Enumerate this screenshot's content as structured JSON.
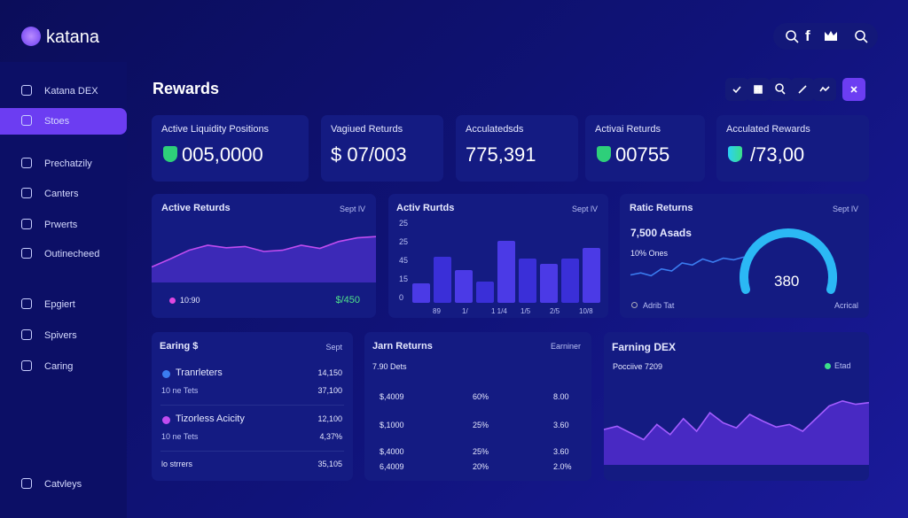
{
  "brand": "katana",
  "social": "f",
  "sidebar": {
    "items": [
      "Katana DEX",
      "Stoes",
      "Prechatzily",
      "Canters",
      "Prwerts",
      "Outinecheed",
      "Epgiert",
      "Spivers",
      "Caring",
      "Catvleys"
    ],
    "active": 1
  },
  "header": {
    "title": "Rewards"
  },
  "stats": [
    {
      "label": "Active Liquidity Positions",
      "value": "005,0000"
    },
    {
      "label": "Vagiued Returds",
      "value": "$ 07/003"
    },
    {
      "label": "Acculatedsds",
      "value": "775,391"
    },
    {
      "label": "Activai Returds",
      "value": "00755"
    },
    {
      "label": "Acculated Rewards",
      "value": "/73,00"
    }
  ],
  "active_returns": {
    "title": "Active Returds",
    "filter": "Sept lV",
    "legend": "10:90",
    "amount": "$/450",
    "ylim": [
      0,
      100
    ],
    "values": [
      25,
      38,
      52,
      60,
      56,
      58,
      50,
      52,
      60,
      55,
      66,
      72,
      74
    ]
  },
  "bar_panel": {
    "title": "Activ Rurtds",
    "filter": "Sept lV",
    "y_labels": [
      "25",
      "25",
      "45",
      "15",
      "0"
    ],
    "x_labels": [
      "89",
      "1/",
      "1 1/4",
      "1/5",
      "2/5",
      "10/8"
    ],
    "ylim": [
      0,
      100
    ],
    "values": [
      22,
      52,
      37,
      24,
      70,
      50,
      44,
      50,
      62
    ]
  },
  "ratio_panel": {
    "title": "Ratic Returns",
    "filter": "Sept lV",
    "headline": "7,500 Asads",
    "rate": "10% Ones",
    "gauge": "380",
    "foot_left": "Adrib Tat",
    "foot_right": "Acrical",
    "ylim": [
      0,
      100
    ],
    "values": [
      30,
      35,
      28,
      45,
      40,
      60,
      55,
      70,
      62,
      72,
      68,
      75
    ]
  },
  "earning": {
    "title": "Earing $",
    "filter": "Sept",
    "rows": [
      {
        "name": "Tranrleters",
        "sub": "10 ne Tets",
        "v1": "14,150",
        "v2": "37,100"
      },
      {
        "name": "Tizorless Acicity",
        "sub": "10 ne Tets",
        "v1": "12,100",
        "v2": "4,37%"
      }
    ],
    "last": {
      "name": "lo strrers",
      "value": "35,105"
    }
  },
  "returns_table": {
    "title": "Jarn Returns",
    "right": "Earniner",
    "sub": "7.90 Dets",
    "rows": [
      [
        "$,4009",
        "60%",
        "8.00"
      ],
      [
        "$,1000",
        "25%",
        "3.60"
      ],
      [
        "$,4000",
        "25%",
        "3.60"
      ],
      [
        "6,4009",
        "20%",
        "2.0%"
      ]
    ]
  },
  "farning": {
    "title": "Farning DEX",
    "sub": "Pocciive 7209",
    "legend": "Etad",
    "ylim": [
      0,
      100
    ],
    "values": [
      42,
      46,
      38,
      30,
      48,
      36,
      55,
      40,
      62,
      50,
      44,
      60,
      52,
      45,
      48,
      40,
      55,
      70,
      76,
      72,
      74
    ]
  }
}
